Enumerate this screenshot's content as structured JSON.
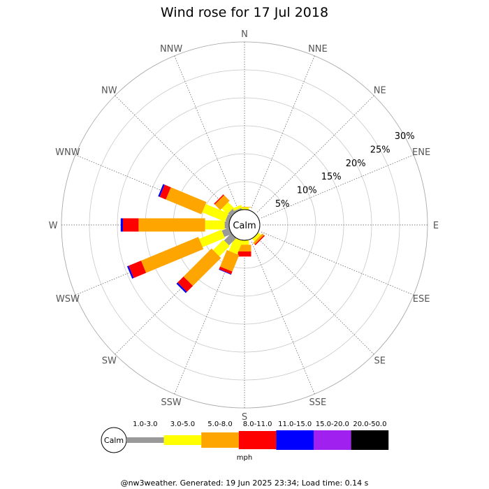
{
  "chart_data": {
    "type": "windrose",
    "title": "Wind rose for 17 Jul 2018",
    "directions": [
      "N",
      "NNE",
      "NE",
      "ENE",
      "E",
      "ESE",
      "SE",
      "SSE",
      "S",
      "SSW",
      "SW",
      "WSW",
      "W",
      "WNW",
      "NW",
      "NNW"
    ],
    "radial_ticks": [
      "5%",
      "10%",
      "15%",
      "20%",
      "25%",
      "30%"
    ],
    "radial_tick_values": [
      5,
      10,
      15,
      20,
      25,
      30
    ],
    "rmax": 30,
    "calm_label": "Calm",
    "units_label": "mph",
    "speed_bins": [
      {
        "label": "1.0-3.0",
        "color": "#999999"
      },
      {
        "label": "3.0-5.0",
        "color": "#ffff00"
      },
      {
        "label": "5.0-8.0",
        "color": "#ffa500"
      },
      {
        "label": "8.0-11.0",
        "color": "#ff0000"
      },
      {
        "label": "11.0-15.0",
        "color": "#0000ff"
      },
      {
        "label": "15.0-20.0",
        "color": "#a020f0"
      },
      {
        "label": "20.0-50.0",
        "color": "#000000"
      }
    ],
    "cumulative_percent": {
      "N": [
        0,
        0.4,
        0.5,
        0,
        0,
        0,
        0
      ],
      "NNE": [
        0,
        0,
        0,
        0,
        0,
        0,
        0
      ],
      "NE": [
        0,
        0,
        0,
        0,
        0,
        0,
        0
      ],
      "ENE": [
        0,
        0,
        0,
        0,
        0,
        0,
        0
      ],
      "E": [
        0,
        0,
        0,
        0,
        0,
        0,
        0
      ],
      "ESE": [
        0,
        0,
        0,
        0,
        0,
        0,
        0
      ],
      "SE": [
        0,
        0.6,
        1.0,
        1.2,
        0,
        0,
        0
      ],
      "SSE": [
        0,
        0,
        0,
        0,
        0,
        0,
        0
      ],
      "S": [
        0,
        0.8,
        2.0,
        2.9,
        0,
        0,
        0
      ],
      "SSW": [
        0,
        2.6,
        5.8,
        6.3,
        6.4,
        0,
        0
      ],
      "SW": [
        1.8,
        4.4,
        11.5,
        13.0,
        13.3,
        0,
        0
      ],
      "WSW": [
        1.4,
        5.7,
        16.8,
        19.2,
        19.5,
        0,
        0
      ],
      "W": [
        0.8,
        4.3,
        16.2,
        19.0,
        19.4,
        0,
        0
      ],
      "WNW": [
        0.7,
        5.1,
        12.0,
        13.2,
        13.5,
        0,
        0
      ],
      "NW": [
        0.8,
        2.2,
        3.6,
        3.8,
        0,
        0,
        0
      ],
      "NNW": [
        0.3,
        0.8,
        0,
        0,
        0,
        0,
        0
      ]
    }
  },
  "footer": {
    "text": "@nw3weather. Generated: 19 Jun 2025 23:34; Load time: 0.14 s"
  }
}
